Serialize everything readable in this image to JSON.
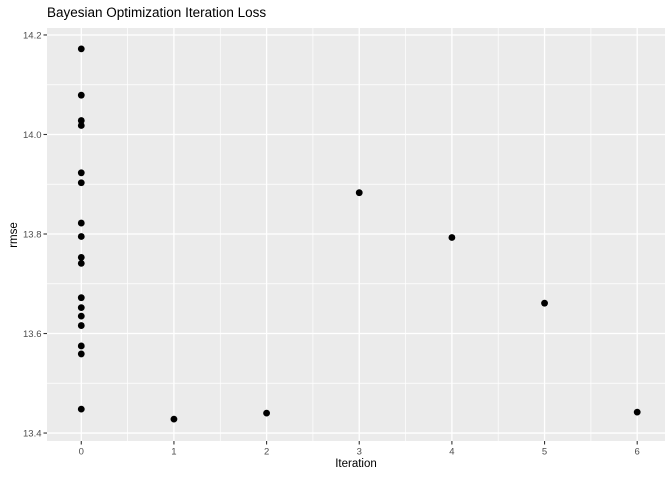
{
  "chart_data": {
    "type": "scatter",
    "title": "Bayesian Optimization Iteration Loss",
    "xlabel": "Iteration",
    "ylabel": "rmse",
    "legend": "none",
    "grid": "major+minor",
    "xlim": [
      -0.37,
      6.3
    ],
    "ylim": [
      13.384,
      14.214
    ],
    "x_ticks": [
      {
        "label": "0",
        "value": 0
      },
      {
        "label": "1",
        "value": 1
      },
      {
        "label": "2",
        "value": 2
      },
      {
        "label": "3",
        "value": 3
      },
      {
        "label": "4",
        "value": 4
      },
      {
        "label": "5",
        "value": 5
      },
      {
        "label": "6",
        "value": 6
      }
    ],
    "y_ticks": [
      {
        "label": "13.4",
        "value": 13.4
      },
      {
        "label": "13.6",
        "value": 13.6
      },
      {
        "label": "13.8",
        "value": 13.8
      },
      {
        "label": "14.0",
        "value": 14.0
      },
      {
        "label": "14.2",
        "value": 14.2
      }
    ],
    "points": [
      {
        "x": 0,
        "rmse": 14.172
      },
      {
        "x": 0,
        "rmse": 14.079
      },
      {
        "x": 0,
        "rmse": 14.028
      },
      {
        "x": 0,
        "rmse": 14.018
      },
      {
        "x": 0,
        "rmse": 13.923
      },
      {
        "x": 0,
        "rmse": 13.903
      },
      {
        "x": 0,
        "rmse": 13.822
      },
      {
        "x": 0,
        "rmse": 13.795
      },
      {
        "x": 0,
        "rmse": 13.753
      },
      {
        "x": 0,
        "rmse": 13.741
      },
      {
        "x": 0,
        "rmse": 13.672
      },
      {
        "x": 0,
        "rmse": 13.652
      },
      {
        "x": 0,
        "rmse": 13.635
      },
      {
        "x": 0,
        "rmse": 13.616
      },
      {
        "x": 0,
        "rmse": 13.575
      },
      {
        "x": 0,
        "rmse": 13.559
      },
      {
        "x": 0,
        "rmse": 13.448
      },
      {
        "x": 1,
        "rmse": 13.428
      },
      {
        "x": 2,
        "rmse": 13.44
      },
      {
        "x": 3,
        "rmse": 13.883
      },
      {
        "x": 4,
        "rmse": 13.793
      },
      {
        "x": 5,
        "rmse": 13.661
      },
      {
        "x": 6,
        "rmse": 13.442
      }
    ],
    "colors": {
      "panel_background": "#EBEBEB",
      "gridline": "#FFFFFF",
      "point": "#000000",
      "tick_label": "#4D4D4D",
      "tick_mark": "#333333",
      "text": "#000000",
      "page_background": "#FFFFFF"
    }
  }
}
